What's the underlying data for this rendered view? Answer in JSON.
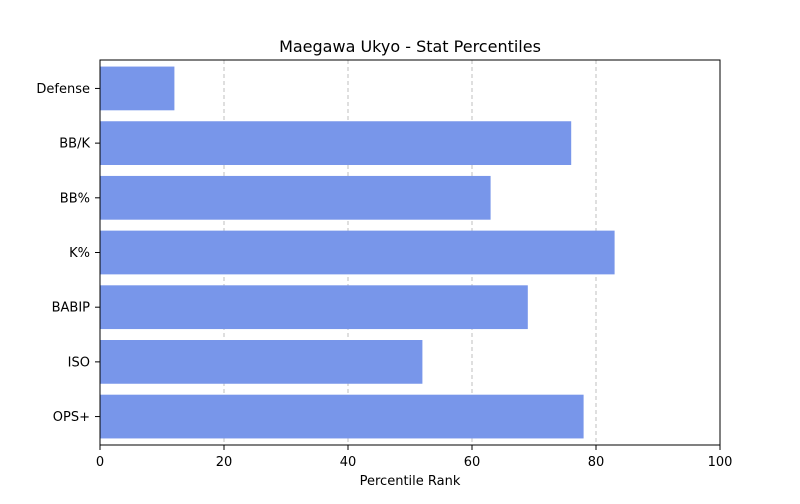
{
  "chart_data": {
    "type": "bar",
    "orientation": "horizontal",
    "title": "Maegawa Ukyo - Stat Percentiles",
    "xlabel": "Percentile Rank",
    "ylabel": "",
    "categories": [
      "OPS+",
      "ISO",
      "BABIP",
      "K%",
      "BB%",
      "BB/K",
      "Defense"
    ],
    "values": [
      78,
      52,
      69,
      83,
      63,
      76,
      12
    ],
    "xlim": [
      0,
      100
    ],
    "xticks": [
      "0",
      "20",
      "40",
      "60",
      "80",
      "100"
    ],
    "grid": "x-dashed",
    "bar_color": "#7896ea"
  }
}
